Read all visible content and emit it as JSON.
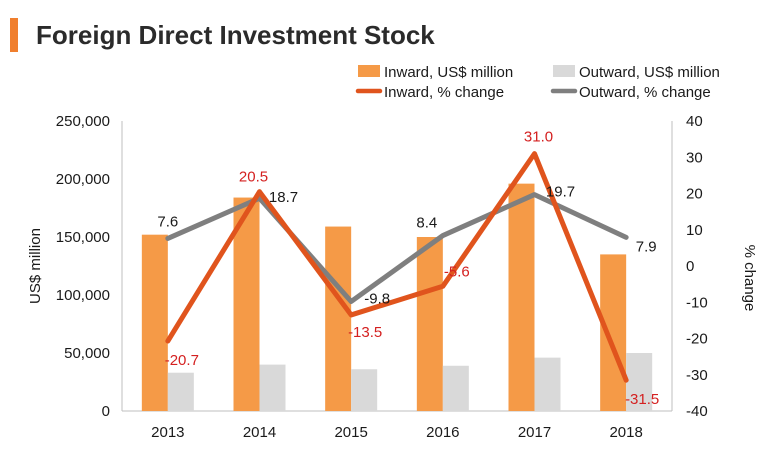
{
  "header": {
    "title": "Foreign Direct Investment Stock"
  },
  "colors": {
    "accent": "#f07f2e",
    "inward_bar": "#f59a47",
    "outward_bar": "#d9d9d9",
    "inward_line": "#e0541d",
    "outward_line": "#7f7f7f",
    "inward_label": "#d42020",
    "outward_label": "#1a1a1a"
  },
  "chart_data": {
    "type": "bar",
    "title": "Foreign Direct Investment Stock",
    "categories": [
      "2013",
      "2014",
      "2015",
      "2016",
      "2017",
      "2018"
    ],
    "ylabel": "US$ million",
    "y2label": "% change",
    "ylim": [
      0,
      250000
    ],
    "y2lim": [
      -40,
      40
    ],
    "yticks": [
      "0",
      "50,000",
      "100,000",
      "150,000",
      "200,000",
      "250,000"
    ],
    "y2ticks": [
      "-40",
      "-30",
      "-20",
      "-10",
      "0",
      "10",
      "20",
      "30",
      "40"
    ],
    "legend_position": "top-right",
    "grid": false,
    "series": [
      {
        "name": "Inward, US$ million",
        "type": "bar",
        "axis": "left",
        "values": [
          152000,
          184000,
          159000,
          150000,
          196000,
          135000
        ]
      },
      {
        "name": "Outward, US$ million",
        "type": "bar",
        "axis": "left",
        "values": [
          33000,
          40000,
          36000,
          39000,
          46000,
          50000
        ]
      },
      {
        "name": "Inward, % change",
        "type": "line",
        "axis": "right",
        "values": [
          -20.7,
          20.5,
          -13.5,
          -5.6,
          31.0,
          -31.5
        ],
        "labels": [
          "-20.7",
          "20.5",
          "-13.5",
          "-5.6",
          "31.0",
          "-31.5"
        ]
      },
      {
        "name": "Outward, % change",
        "type": "line",
        "axis": "right",
        "values": [
          7.6,
          18.7,
          -9.8,
          8.4,
          19.7,
          7.9
        ],
        "labels": [
          "7.6",
          "18.7",
          "-9.8",
          "8.4",
          "19.7",
          "7.9"
        ]
      }
    ]
  }
}
